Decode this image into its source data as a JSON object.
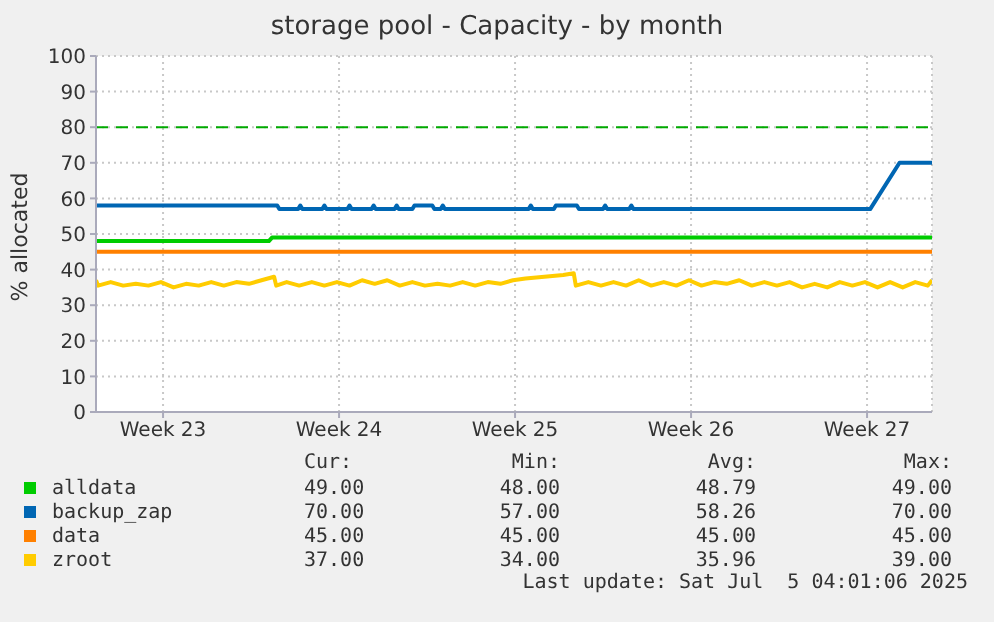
{
  "chart_data": {
    "type": "line",
    "title": "storage pool - Capacity - by month",
    "ylabel": "% allocated",
    "xlim": [
      "2025-06-01T22:00",
      "2025-07-05T04:00"
    ],
    "xticks": [
      {
        "value": "2025-06-04T14:00",
        "label": "Week 23"
      },
      {
        "value": "2025-06-11T14:00",
        "label": "Week 24"
      },
      {
        "value": "2025-06-18T14:00",
        "label": "Week 25"
      },
      {
        "value": "2025-06-25T14:00",
        "label": "Week 26"
      },
      {
        "value": "2025-07-02T14:00",
        "label": "Week 27"
      }
    ],
    "ylim": [
      0,
      100
    ],
    "yticks": [
      0,
      10,
      20,
      30,
      40,
      50,
      60,
      70,
      80,
      90,
      100
    ],
    "grid": true,
    "legend": "bottom",
    "marker": "none",
    "line_style": "solid",
    "ref_lines": [
      {
        "axis": "y",
        "value": 80,
        "color": "#00aa00",
        "line_style": "dashed"
      }
    ],
    "series": [
      {
        "name": "alldata",
        "color": "#00cc00",
        "x": [
          "2025-06-01T22:00",
          "2025-06-08T19:00",
          "2025-06-08T22:00",
          "2025-07-05T04:00"
        ],
        "values": [
          48,
          48,
          49,
          49
        ]
      },
      {
        "name": "backup_zap",
        "color": "#0066b3",
        "x": [
          "2025-06-01T22:00",
          "2025-06-09T03:00",
          "2025-06-09T05:00",
          "2025-06-09T23:00",
          "2025-06-10T01:00",
          "2025-06-10T03:00",
          "2025-06-10T22:00",
          "2025-06-11T00:00",
          "2025-06-11T02:00",
          "2025-06-11T22:00",
          "2025-06-12T00:00",
          "2025-06-12T02:00",
          "2025-06-12T21:00",
          "2025-06-12T23:00",
          "2025-06-13T01:00",
          "2025-06-13T19:00",
          "2025-06-13T21:00",
          "2025-06-13T23:00",
          "2025-06-14T12:00",
          "2025-06-14T14:00",
          "2025-06-15T07:00",
          "2025-06-15T09:00",
          "2025-06-15T15:00",
          "2025-06-15T17:00",
          "2025-06-15T19:00",
          "2025-06-19T03:00",
          "2025-06-19T05:00",
          "2025-06-19T07:00",
          "2025-06-20T03:00",
          "2025-06-20T05:00",
          "2025-06-21T01:00",
          "2025-06-21T03:00",
          "2025-06-22T02:00",
          "2025-06-22T04:00",
          "2025-06-22T06:00",
          "2025-06-23T03:00",
          "2025-06-23T05:00",
          "2025-06-23T07:00",
          "2025-07-02T17:00",
          "2025-07-03T21:00",
          "2025-07-05T04:00"
        ],
        "values": [
          58,
          58,
          57,
          57,
          58,
          57,
          57,
          58,
          57,
          57,
          58,
          57,
          57,
          58,
          57,
          57,
          58,
          57,
          57,
          58,
          58,
          57,
          57,
          58,
          57,
          57,
          58,
          57,
          57,
          58,
          58,
          57,
          57,
          58,
          57,
          57,
          58,
          57,
          57,
          70,
          70
        ]
      },
      {
        "name": "data",
        "color": "#ff8000",
        "x": [
          "2025-06-01T22:00",
          "2025-07-05T04:00"
        ],
        "values": [
          45,
          45
        ]
      },
      {
        "name": "zroot",
        "color": "#ffcc00",
        "x": [
          "2025-06-01T22:00",
          "2025-06-02T00:00",
          "2025-06-02T12:00",
          "2025-06-03T00:00",
          "2025-06-03T12:00",
          "2025-06-04T00:00",
          "2025-06-04T12:00",
          "2025-06-05T00:00",
          "2025-06-05T12:00",
          "2025-06-06T00:00",
          "2025-06-06T12:00",
          "2025-06-07T00:00",
          "2025-06-07T12:00",
          "2025-06-08T00:00",
          "2025-06-08T12:00",
          "2025-06-09T00:00",
          "2025-06-09T02:00",
          "2025-06-09T12:00",
          "2025-06-10T00:00",
          "2025-06-10T12:00",
          "2025-06-11T00:00",
          "2025-06-11T12:00",
          "2025-06-12T00:00",
          "2025-06-12T12:00",
          "2025-06-13T00:00",
          "2025-06-13T12:00",
          "2025-06-14T00:00",
          "2025-06-14T12:00",
          "2025-06-15T00:00",
          "2025-06-15T12:00",
          "2025-06-16T00:00",
          "2025-06-16T12:00",
          "2025-06-17T00:00",
          "2025-06-17T12:00",
          "2025-06-18T00:00",
          "2025-06-18T12:00",
          "2025-06-19T00:00",
          "2025-06-20T12:00",
          "2025-06-20T22:00",
          "2025-06-21T00:00",
          "2025-06-21T12:00",
          "2025-06-22T00:00",
          "2025-06-22T12:00",
          "2025-06-23T00:00",
          "2025-06-23T12:00",
          "2025-06-24T00:00",
          "2025-06-24T12:00",
          "2025-06-25T00:00",
          "2025-06-25T12:00",
          "2025-06-26T00:00",
          "2025-06-26T12:00",
          "2025-06-27T00:00",
          "2025-06-27T12:00",
          "2025-06-28T00:00",
          "2025-06-28T12:00",
          "2025-06-29T00:00",
          "2025-06-29T12:00",
          "2025-06-30T00:00",
          "2025-06-30T12:00",
          "2025-07-01T00:00",
          "2025-07-01T12:00",
          "2025-07-02T00:00",
          "2025-07-02T12:00",
          "2025-07-03T00:00",
          "2025-07-03T12:00",
          "2025-07-04T00:00",
          "2025-07-04T12:00",
          "2025-07-05T00:00",
          "2025-07-05T04:00"
        ],
        "values": [
          37,
          35.5,
          36.5,
          35.5,
          36,
          35.5,
          36.5,
          35,
          36,
          35.5,
          36.5,
          35.5,
          36.5,
          36,
          37,
          38,
          35.5,
          36.5,
          35.5,
          36.5,
          35.5,
          36.5,
          35.5,
          37,
          36,
          37,
          35.5,
          36.5,
          35.5,
          36,
          35.5,
          36.5,
          35.5,
          36.5,
          36,
          37,
          37.5,
          38.5,
          39,
          35.5,
          36.5,
          35.5,
          36.5,
          35.5,
          37,
          35.5,
          36.5,
          35.5,
          37,
          35.5,
          36.5,
          36,
          37,
          35.5,
          36.5,
          35.5,
          36.5,
          35,
          36,
          35,
          36.5,
          35.5,
          36.5,
          35,
          36.5,
          35,
          36.5,
          35.5,
          37
        ]
      }
    ],
    "annotations": [
      "Cur:",
      "Min:",
      "Avg:",
      "Max:",
      "49.00",
      "48.00",
      "48.79",
      "49.00",
      "70.00",
      "57.00",
      "58.26",
      "70.00",
      "45.00",
      "45.00",
      "45.00",
      "45.00",
      "37.00",
      "34.00",
      "35.96",
      "39.00",
      "Last update: Sat Jul  5 04:01:06 2025"
    ]
  }
}
